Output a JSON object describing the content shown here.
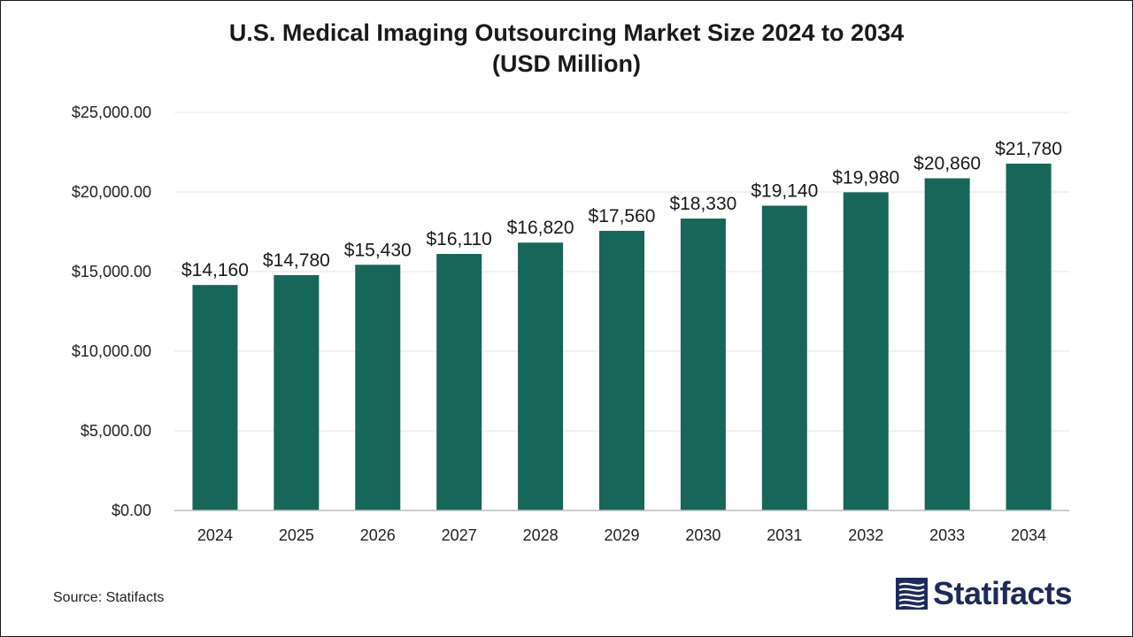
{
  "chart_data": {
    "type": "bar",
    "title": "U.S. Medical Imaging Outsourcing Market Size 2024 to 2034",
    "subtitle": "(USD Million)",
    "categories": [
      "2024",
      "2025",
      "2026",
      "2027",
      "2028",
      "2029",
      "2030",
      "2031",
      "2032",
      "2033",
      "2034"
    ],
    "values": [
      14160,
      14780,
      15430,
      16110,
      16820,
      17560,
      18330,
      19140,
      19980,
      20860,
      21780
    ],
    "data_labels": [
      "$14,160",
      "$14,780",
      "$15,430",
      "$16,110",
      "$16,820",
      "$17,560",
      "$18,330",
      "$19,140",
      "$19,980",
      "$20,860",
      "$21,780"
    ],
    "yticks": [
      0,
      5000,
      10000,
      15000,
      20000,
      25000
    ],
    "ytick_labels": [
      "$0.00",
      "$5,000.00",
      "$10,000.00",
      "$15,000.00",
      "$20,000.00",
      "$25,000.00"
    ],
    "ylim": [
      0,
      25000
    ],
    "xlabel": "",
    "ylabel": "",
    "grid": true,
    "bar_color": "#17665a",
    "legend": "none"
  },
  "footer": {
    "source": "Source: Statifacts",
    "brand": "Statifacts",
    "brand_color": "#1e2a5a"
  }
}
